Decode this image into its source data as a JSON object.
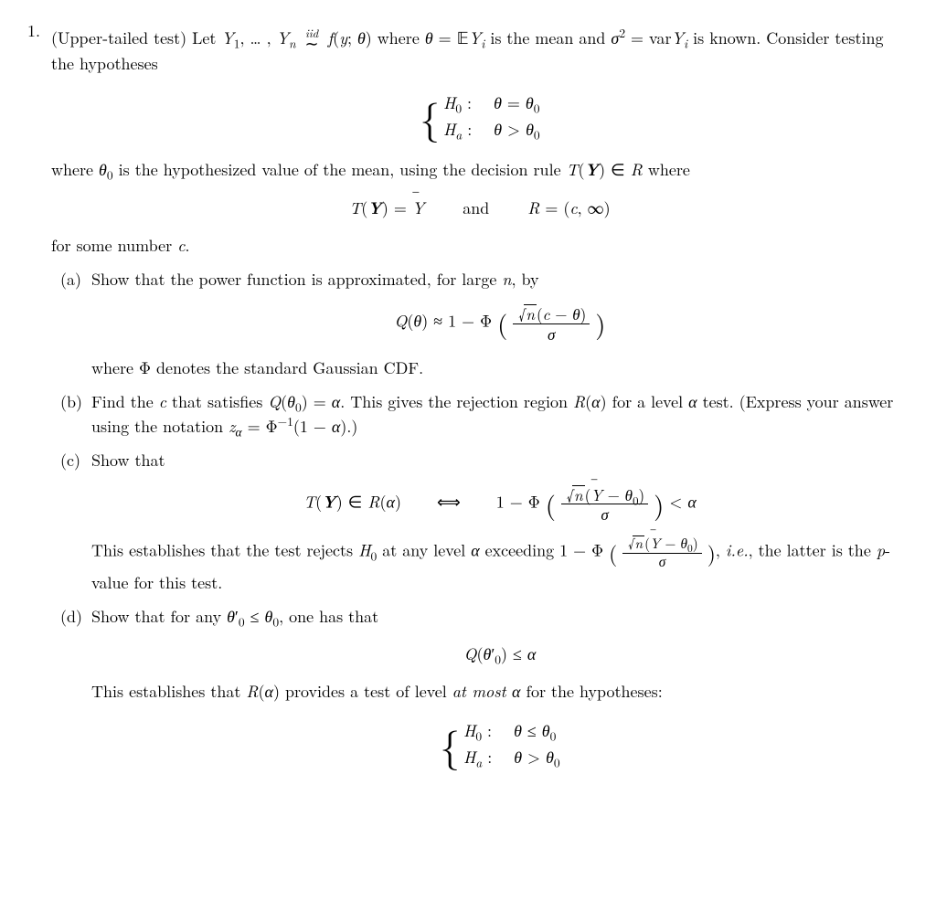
{
  "problem": {
    "number": "1.",
    "intro_html": "(Upper-tailed test) Let <span class='ital'>Y</span><sub>1</sub>, … , <span class='ital'>Y<sub>n</sub></span> <span class='iid'><span class='top'>iid</span><span class='sym'>∼</span></span> <span class='ital'>f</span>(<span class='ital'>y</span>; <span class='ital'>θ</span>) where <span class='ital'>θ</span> = <span class='blackboard'>𝔼</span><span class='ital'>Y<sub>i</sub></span> is the mean and <span class='ital'>σ</span><sup>2</sup> = var<span class='ital'>Y<sub>i</sub></span> is known. Consider testing the hypotheses",
    "hypotheses1_html": "<span class='brace'>{</span><span class='stack'><span class='row'><span class='ital'>H</span><sub>0</sub> :&nbsp;&nbsp; <span class='ital'>θ</span> = <span class='ital'>θ</span><sub>0</sub></span><span class='row'><span class='ital'>H<sub>a</sub></span> :&nbsp;&nbsp; <span class='ital'>θ</span> &gt; <span class='ital'>θ</span><sub>0</sub></span></span>",
    "where_text_html": "where <span class='ital'>θ</span><sub>0</sub> is the hypothesized value of the mean, using the decision rule <span class='ital'>T</span>(<span class='bold ital'>Y</span>) ∈ <span class='ital'>R</span> where",
    "decision_rule_html": "<span class='ital'>T</span>(<span class='bold ital'>Y</span>) = <span class='ital ybar'>Y</span>&nbsp;&nbsp;&nbsp;&nbsp; and &nbsp;&nbsp;&nbsp;&nbsp;<span class='ital'>R</span> = (<span class='ital'>c</span>, ∞)",
    "for_some_html": "for some number <span class='ital'>c</span>.",
    "parts": {
      "a": {
        "label": "(a)",
        "text_html": "Show that the power function is approximated, for large <span class='ital'>n</span>, by",
        "math_html": "<span class='ital'>Q</span>(<span class='ital'>θ</span>) ≈ 1 − Φ <span class='bigparen'>(</span> <span class='frac'><span class='num'><span class='sqrt'><span class='rad'><span class='ital'>n</span></span></span>(<span class='ital'>c</span> − <span class='ital'>θ</span>)</span><span class='den'><span class='ital'>σ</span></span></span> <span class='bigparen'>)</span>",
        "after_html": "where Φ denotes the standard Gaussian CDF."
      },
      "b": {
        "label": "(b)",
        "text_html": "Find the <span class='ital'>c</span> that satisfies <span class='ital'>Q</span>(<span class='ital'>θ</span><sub>0</sub>) = <span class='ital'>α</span>. This gives the rejection region <span class='ital'>R</span>(<span class='ital'>α</span>) for a level <span class='ital'>α</span> test. (Express your answer using the notation <span class='ital'>z<sub>α</sub></span> = Φ<sup>−1</sup>(1 − <span class='ital'>α</span>).)"
      },
      "c": {
        "label": "(c)",
        "text_html": "Show that",
        "math_html": "<span class='ital'>T</span>(<span class='bold ital'>Y</span>) ∈ <span class='ital'>R</span>(<span class='ital'>α</span>) &nbsp;&nbsp;&nbsp; ⟺ &nbsp;&nbsp;&nbsp; 1 − Φ <span class='bigparen'>(</span> <span class='frac'><span class='num'><span class='sqrt'><span class='rad'><span class='ital'>n</span></span></span>(<span class='ital ybar'>Y</span> − <span class='ital'>θ</span><sub>0</sub>)</span><span class='den'><span class='ital'>σ</span></span></span> <span class='bigparen'>)</span> &lt; <span class='ital'>α</span>",
        "after_html": "This establishes that the test rejects <span class='ital'>H</span><sub>0</sub> at any level <span class='ital'>α</span> exceeding 1 − Φ <span class='bigparen' style='font-size:1.3em'>(</span> <span class='frac' style='font-size:0.85em'><span class='num'><span class='sqrt'><span class='rad'><span class='ital'>n</span></span></span>(<span class='ital ybar'>Y</span> − <span class='ital'>θ</span><sub>0</sub>)</span><span class='den'><span class='ital'>σ</span></span></span> <span class='bigparen' style='font-size:1.3em'>)</span>, <span class='ital'>i.e.</span>, the latter is the <span class='ital'>p</span>-value for this test."
      },
      "d": {
        "label": "(d)",
        "text_html": "Show that for any <span class='ital'>θ</span>′<sub>0</sub> ≤ <span class='ital'>θ</span><sub>0</sub>, one has that",
        "math_html": "<span class='ital'>Q</span>(<span class='ital'>θ</span>′<sub>0</sub>) ≤ <span class='ital'>α</span>",
        "after_html": "This establishes that <span class='ital'>R</span>(<span class='ital'>α</span>) provides a test of level <span class='ital'>at most α</span> for the hypotheses:",
        "hypotheses2_html": "<span class='brace'>{</span><span class='stack'><span class='row'><span class='ital'>H</span><sub>0</sub> :&nbsp;&nbsp; <span class='ital'>θ</span> ≤ <span class='ital'>θ</span><sub>0</sub></span><span class='row'><span class='ital'>H<sub>a</sub></span> :&nbsp;&nbsp; <span class='ital'>θ</span> &gt; <span class='ital'>θ</span><sub>0</sub></span></span>"
      }
    }
  },
  "colors": {
    "text": "#000000",
    "background": "#ffffff"
  },
  "typography": {
    "body_fontsize_pt": 14,
    "font_family": "Computer Modern / Latin Modern serif"
  }
}
